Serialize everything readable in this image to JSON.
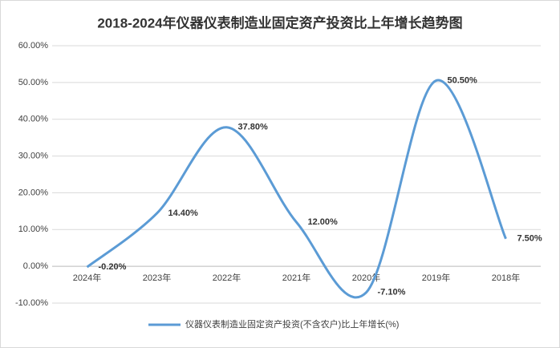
{
  "chart_data": {
    "type": "line",
    "title": "2018-2024年仪器仪表制造业固定资产投资比上年增长趋势图",
    "categories": [
      "2024年",
      "2023年",
      "2022年",
      "2021年",
      "2020年",
      "2019年",
      "2018年"
    ],
    "series": [
      {
        "name": "仪器仪表制造业固定资产投资(不含农户)比上年增长(%)",
        "color": "#5b9bd5",
        "values": [
          -0.2,
          14.4,
          37.8,
          12.0,
          -7.1,
          50.5,
          7.5
        ],
        "value_labels": [
          "-0.20%",
          "14.40%",
          "37.80%",
          "12.00%",
          "-7.10%",
          "50.50%",
          "7.50%"
        ]
      }
    ],
    "ylim": [
      -10,
      60
    ],
    "yticks": [
      {
        "value": -10,
        "label": "-10.00%"
      },
      {
        "value": 0,
        "label": "0.00%"
      },
      {
        "value": 10,
        "label": "10.00%"
      },
      {
        "value": 20,
        "label": "20.00%"
      },
      {
        "value": 30,
        "label": "30.00%"
      },
      {
        "value": 40,
        "label": "40.00%"
      },
      {
        "value": 50,
        "label": "50.00%"
      },
      {
        "value": 60,
        "label": "60.00%"
      }
    ],
    "grid": true,
    "legend": "bottom",
    "smooth": true
  }
}
